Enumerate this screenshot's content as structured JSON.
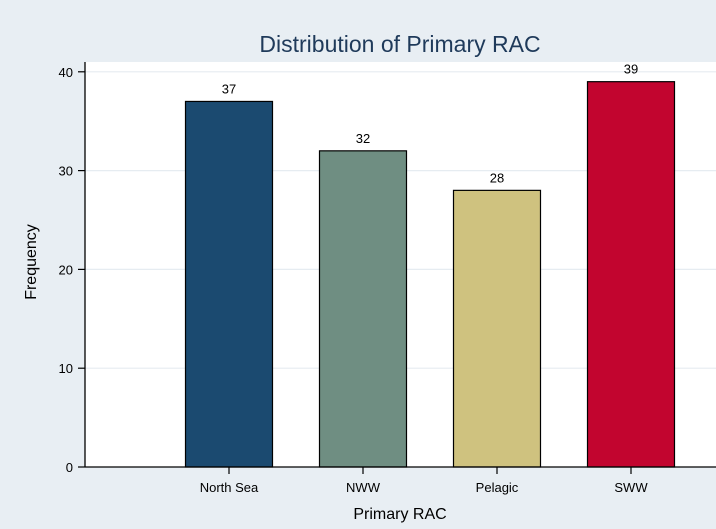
{
  "chart_data": {
    "type": "bar",
    "title": "Distribution of Primary RAC",
    "xlabel": "Primary RAC",
    "ylabel": "Frequency",
    "categories": [
      "North Sea",
      "NWW",
      "Pelagic",
      "SWW"
    ],
    "values": [
      37,
      32,
      28,
      39
    ],
    "data_labels": [
      "37",
      "32",
      "28",
      "39"
    ],
    "ylim": [
      0,
      41
    ],
    "yticks": [
      0,
      10,
      20,
      30,
      40
    ],
    "ytick_labels": [
      "0",
      "10",
      "20",
      "30",
      "40"
    ],
    "grid": true,
    "legend": "none",
    "colors": [
      "#1b4a70",
      "#6f8e82",
      "#cfc27f",
      "#c2052f"
    ]
  }
}
